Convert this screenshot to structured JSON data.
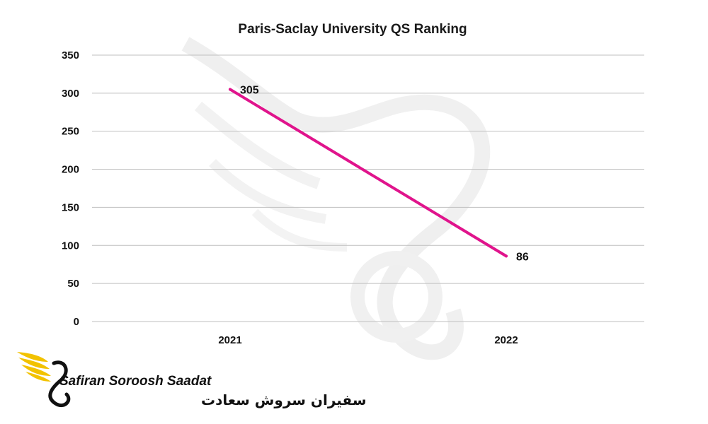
{
  "chart_data": {
    "type": "line",
    "title": "Paris-Saclay University QS Ranking",
    "categories": [
      "2021",
      "2022"
    ],
    "series": [
      {
        "values": [
          305,
          86
        ],
        "color": "#e0148c"
      }
    ],
    "data_labels": [
      "305",
      "86"
    ],
    "ylim": [
      0,
      350
    ],
    "yticks": [
      0,
      50,
      100,
      150,
      200,
      250,
      300,
      350
    ],
    "grid": true,
    "legend": "none",
    "gridline_color": "#bfbfbf"
  },
  "branding": {
    "name_en": "Safiran Soroosh Saadat",
    "name_fa": "سفیران سروش سعادت",
    "logo_icon": "wing-swan-icon",
    "watermark_icon": "wing-swan-icon",
    "logo_color": "#f2c200"
  }
}
